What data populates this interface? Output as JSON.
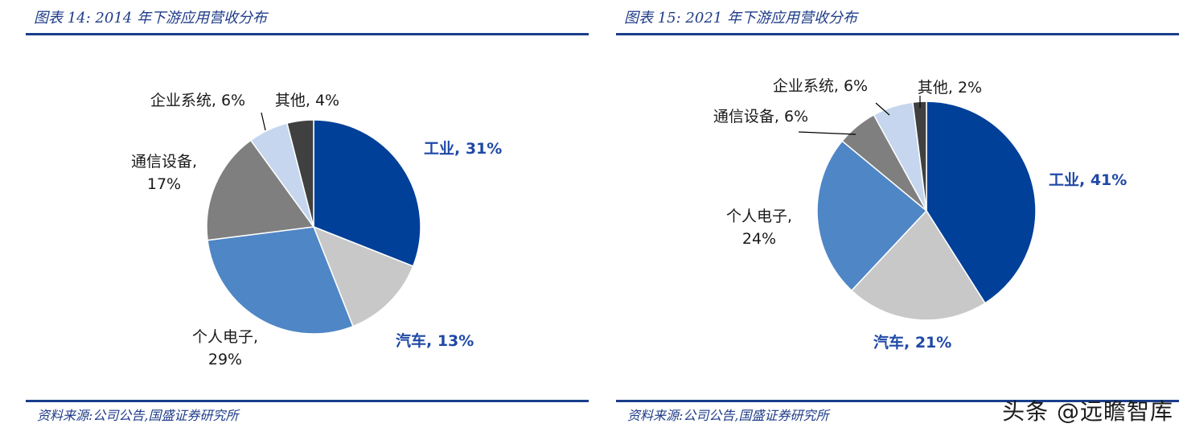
{
  "watermark": "头条 @远瞻智库",
  "colors": {
    "rule": "#1a3e8c",
    "title": "#1f3c88",
    "label_accent": "#1f49a6"
  },
  "chart_data": [
    {
      "type": "pie",
      "title": "图表 14:  2014 年下游应用营收分布",
      "source": "资料来源:公司公告,国盛证券研究所",
      "slices": [
        {
          "name": "工业",
          "value": 31,
          "label": "工业, 31%",
          "color": "#004098",
          "highlight": true
        },
        {
          "name": "汽车",
          "value": 13,
          "label": "汽车, 13%",
          "color": "#c8c8c8",
          "highlight": true
        },
        {
          "name": "个人电子",
          "value": 29,
          "label": "个人电子,\n29%",
          "color": "#4f86c6",
          "highlight": false
        },
        {
          "name": "通信设备",
          "value": 17,
          "label": "通信设备,\n17%",
          "color": "#7f7f7f",
          "highlight": false
        },
        {
          "name": "企业系统",
          "value": 6,
          "label": "企业系统, 6%",
          "color": "#c5d6ee",
          "highlight": false
        },
        {
          "name": "其他",
          "value": 4,
          "label": "其他, 4%",
          "color": "#404040",
          "highlight": false
        }
      ]
    },
    {
      "type": "pie",
      "title": "图表 15:  2021 年下游应用营收分布",
      "source": "资料来源:公司公告,国盛证券研究所",
      "slices": [
        {
          "name": "工业",
          "value": 41,
          "label": "工业, 41%",
          "color": "#004098",
          "highlight": true
        },
        {
          "name": "汽车",
          "value": 21,
          "label": "汽车, 21%",
          "color": "#c8c8c8",
          "highlight": true
        },
        {
          "name": "个人电子",
          "value": 24,
          "label": "个人电子,\n24%",
          "color": "#4f86c6",
          "highlight": false
        },
        {
          "name": "通信设备",
          "value": 6,
          "label": "通信设备, 6%",
          "color": "#7f7f7f",
          "highlight": false
        },
        {
          "name": "企业系统",
          "value": 6,
          "label": "企业系统, 6%",
          "color": "#c5d6ee",
          "highlight": false
        },
        {
          "name": "其他",
          "value": 2,
          "label": "其他, 2%",
          "color": "#404040",
          "highlight": false
        }
      ]
    }
  ]
}
